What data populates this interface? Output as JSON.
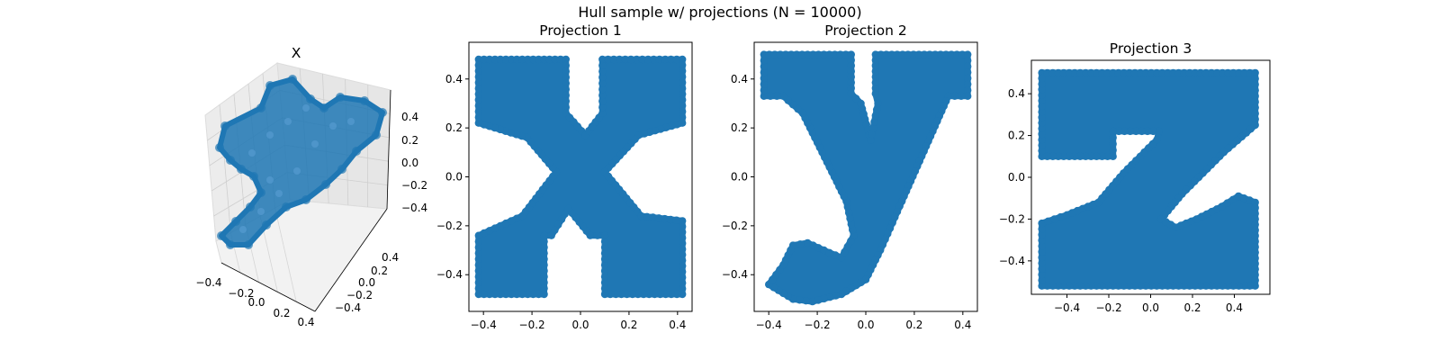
{
  "figure": {
    "suptitle": "Hull sample w/ projections (N = 10000)"
  },
  "chart_data": [
    {
      "type": "scatter",
      "projection": "3d",
      "title": "X",
      "series_color": "#1f77b4",
      "x_ticks": [
        "−0.4",
        "−0.2",
        "0.0",
        "0.2",
        "0.4"
      ],
      "y_ticks": [
        "0.4",
        "0.2",
        "0.0",
        "−0.2",
        "−0.4"
      ],
      "z_ticks": [
        "0.4",
        "0.2",
        "0.0",
        "−0.2",
        "−0.4"
      ],
      "xlim": [
        -0.5,
        0.5
      ],
      "ylim": [
        -0.5,
        0.5
      ],
      "zlim": [
        -0.5,
        0.5
      ],
      "grid": true,
      "shape_description": "3D point cloud whose projections form the letters x, y and z"
    },
    {
      "type": "scatter",
      "title": "Projection 1",
      "series_color": "#1f77b4",
      "xlim": [
        -0.46,
        0.46
      ],
      "ylim": [
        -0.55,
        0.55
      ],
      "x_ticks": [
        -0.4,
        -0.2,
        0.0,
        0.2,
        0.4
      ],
      "y_ticks": [
        -0.4,
        -0.2,
        0.0,
        0.2,
        0.4
      ],
      "x_tick_labels": [
        "−0.4",
        "−0.2",
        "0.0",
        "0.2",
        "0.4"
      ],
      "y_tick_labels": [
        "−0.4",
        "−0.2",
        "0.0",
        "0.2",
        "0.4"
      ],
      "glyph": "x",
      "polygons": [
        [
          [
            -0.42,
            0.48
          ],
          [
            -0.06,
            0.48
          ],
          [
            -0.06,
            0.26
          ],
          [
            0.02,
            0.17
          ],
          [
            0.09,
            0.26
          ],
          [
            0.09,
            0.48
          ],
          [
            0.42,
            0.48
          ],
          [
            0.42,
            0.22
          ],
          [
            0.24,
            0.17
          ],
          [
            0.1,
            0.02
          ],
          [
            0.25,
            -0.16
          ],
          [
            0.42,
            -0.18
          ],
          [
            0.42,
            -0.48
          ],
          [
            0.1,
            -0.48
          ],
          [
            0.1,
            -0.24
          ],
          [
            0.04,
            -0.24
          ],
          [
            -0.05,
            -0.13
          ],
          [
            -0.12,
            -0.24
          ],
          [
            -0.15,
            -0.24
          ],
          [
            -0.15,
            -0.48
          ],
          [
            -0.42,
            -0.48
          ],
          [
            -0.42,
            -0.24
          ],
          [
            -0.24,
            -0.16
          ],
          [
            -0.1,
            0.02
          ],
          [
            -0.22,
            0.16
          ],
          [
            -0.42,
            0.22
          ]
        ]
      ]
    },
    {
      "type": "scatter",
      "title": "Projection 2",
      "series_color": "#1f77b4",
      "xlim": [
        -0.46,
        0.46
      ],
      "ylim": [
        -0.55,
        0.55
      ],
      "x_ticks": [
        -0.4,
        -0.2,
        0.0,
        0.2,
        0.4
      ],
      "y_ticks": [
        -0.4,
        -0.2,
        0.0,
        0.2,
        0.4
      ],
      "x_tick_labels": [
        "−0.4",
        "−0.2",
        "0.0",
        "0.2",
        "0.4"
      ],
      "y_tick_labels": [
        "−0.4",
        "−0.2",
        "0.0",
        "0.2",
        "0.4"
      ],
      "glyph": "y",
      "polygons": [
        [
          [
            -0.42,
            0.5
          ],
          [
            -0.06,
            0.5
          ],
          [
            -0.06,
            0.34
          ],
          [
            -0.02,
            0.3
          ],
          [
            0.02,
            0.15
          ],
          [
            0.05,
            0.3
          ],
          [
            0.04,
            0.34
          ],
          [
            0.04,
            0.5
          ],
          [
            0.42,
            0.5
          ],
          [
            0.42,
            0.33
          ],
          [
            0.34,
            0.33
          ],
          [
            0.14,
            -0.12
          ],
          [
            0.06,
            -0.3
          ],
          [
            0.0,
            -0.42
          ],
          [
            -0.1,
            -0.48
          ],
          [
            -0.22,
            -0.51
          ],
          [
            -0.3,
            -0.5
          ],
          [
            -0.4,
            -0.44
          ],
          [
            -0.34,
            -0.36
          ],
          [
            -0.3,
            -0.28
          ],
          [
            -0.24,
            -0.27
          ],
          [
            -0.15,
            -0.31
          ],
          [
            -0.1,
            -0.33
          ],
          [
            -0.05,
            -0.24
          ],
          [
            -0.08,
            -0.1
          ],
          [
            -0.26,
            0.26
          ],
          [
            -0.34,
            0.33
          ],
          [
            -0.42,
            0.33
          ]
        ]
      ]
    },
    {
      "type": "scatter",
      "title": "Projection 3",
      "series_color": "#1f77b4",
      "xlim": [
        -0.57,
        0.57
      ],
      "ylim": [
        -0.56,
        0.56
      ],
      "x_ticks": [
        -0.4,
        -0.2,
        0.0,
        0.2,
        0.4
      ],
      "y_ticks": [
        -0.4,
        -0.2,
        0.0,
        0.2,
        0.4
      ],
      "x_tick_labels": [
        "−0.4",
        "−0.2",
        "0.0",
        "0.2",
        "0.4"
      ],
      "y_tick_labels": [
        "−0.4",
        "−0.2",
        "0.0",
        "0.2",
        "0.4"
      ],
      "glyph": "z",
      "polygons": [
        [
          [
            -0.52,
            0.5
          ],
          [
            0.5,
            0.5
          ],
          [
            0.5,
            0.25
          ],
          [
            0.35,
            0.12
          ],
          [
            0.15,
            -0.08
          ],
          [
            0.05,
            -0.2
          ],
          [
            0.12,
            -0.24
          ],
          [
            0.22,
            -0.2
          ],
          [
            0.34,
            -0.14
          ],
          [
            0.42,
            -0.09
          ],
          [
            0.5,
            -0.12
          ],
          [
            0.5,
            -0.52
          ],
          [
            -0.52,
            -0.52
          ],
          [
            -0.52,
            -0.22
          ],
          [
            -0.4,
            -0.18
          ],
          [
            -0.25,
            -0.12
          ],
          [
            -0.13,
            0.02
          ],
          [
            -0.05,
            0.1
          ],
          [
            0.03,
            0.18
          ],
          [
            0.04,
            0.22
          ],
          [
            -0.18,
            0.22
          ],
          [
            -0.18,
            0.1
          ],
          [
            -0.52,
            0.1
          ]
        ]
      ]
    }
  ]
}
